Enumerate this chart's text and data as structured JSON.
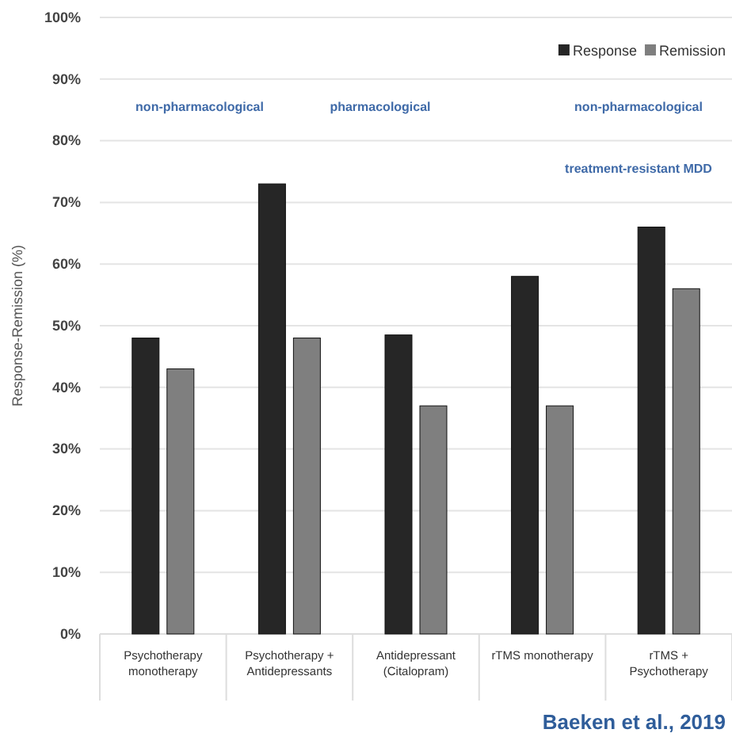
{
  "chart_data": {
    "type": "bar",
    "ylabel": "Response-Remission (%)",
    "categories": [
      "Psychotherapy monotherapy",
      "Psychotherapy + Antidepressants",
      "Antidepressant (Citalopram)",
      "rTMS monotherapy",
      "rTMS + Psychotherapy"
    ],
    "series": [
      {
        "name": "Response",
        "color": "#262626",
        "values": [
          48,
          73,
          48.5,
          58,
          66
        ]
      },
      {
        "name": "Remission",
        "color": "#7f7f7f",
        "values": [
          43,
          48,
          37,
          37,
          56
        ]
      }
    ],
    "ylim": [
      0,
      100
    ],
    "yticks": [
      {
        "value": 0,
        "label": "0%"
      },
      {
        "value": 10,
        "label": "10%"
      },
      {
        "value": 20,
        "label": "20%"
      },
      {
        "value": 30,
        "label": "30%"
      },
      {
        "value": 40,
        "label": "40%"
      },
      {
        "value": 50,
        "label": "50%"
      },
      {
        "value": 60,
        "label": "60%"
      },
      {
        "value": 70,
        "label": "70%"
      },
      {
        "value": 80,
        "label": "80%"
      },
      {
        "value": 90,
        "label": "90%"
      },
      {
        "value": 100,
        "label": "100%"
      }
    ],
    "grid": "y",
    "legend": "top right",
    "annotations": [
      "non-pharmacological",
      "pharmacological",
      "non-pharmacological",
      "treatment-resistant MDD",
      "Baeken et al., 2019"
    ]
  }
}
